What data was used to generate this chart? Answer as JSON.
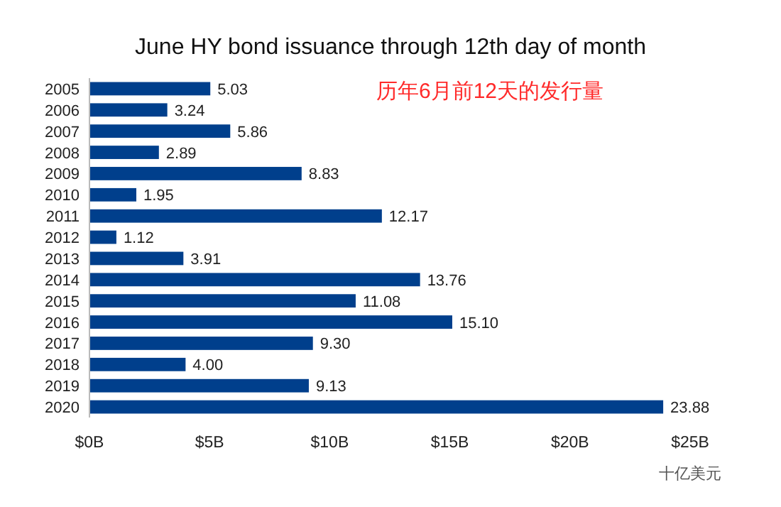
{
  "chart_data": {
    "type": "bar",
    "orientation": "horizontal",
    "title": "June HY bond issuance through 12th day of month",
    "xlabel": "十亿美元",
    "annotations": [
      "历年6月前12天的发行量"
    ],
    "categories": [
      "2005",
      "2006",
      "2007",
      "2008",
      "2009",
      "2010",
      "2011",
      "2012",
      "2013",
      "2014",
      "2015",
      "2016",
      "2017",
      "2018",
      "2019",
      "2020"
    ],
    "values": [
      5.03,
      3.24,
      5.86,
      2.89,
      8.83,
      1.95,
      12.17,
      1.12,
      3.91,
      13.76,
      11.08,
      15.1,
      9.3,
      4.0,
      9.13,
      23.88
    ],
    "value_labels": [
      "5.03",
      "3.24",
      "5.86",
      "2.89",
      "8.83",
      "1.95",
      "12.17",
      "1.12",
      "3.91",
      "13.76",
      "11.08",
      "15.10",
      "9.30",
      "4.00",
      "9.13",
      "23.88"
    ],
    "color": "#003f8c",
    "xlim": [
      0,
      25
    ],
    "xticks": [
      {
        "value": 0,
        "label": "$0B"
      },
      {
        "value": 5,
        "label": "$5B"
      },
      {
        "value": 10,
        "label": "$10B"
      },
      {
        "value": 15,
        "label": "$15B"
      },
      {
        "value": 20,
        "label": "$20B"
      },
      {
        "value": 25,
        "label": "$25B"
      }
    ],
    "grid": false
  }
}
